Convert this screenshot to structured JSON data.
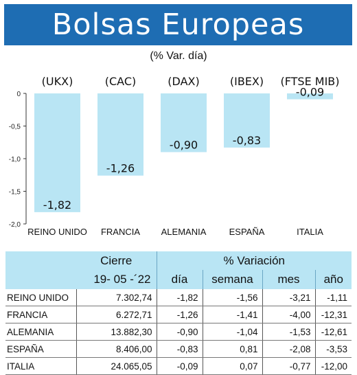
{
  "header": {
    "title": "Bolsas Europeas",
    "subtitle": "(% Var. día)"
  },
  "chart_data": {
    "type": "bar",
    "categories": [
      "REINO UNIDO",
      "FRANCIA",
      "ALEMANIA",
      "ESPAÑA",
      "ITALIA"
    ],
    "index_labels": [
      "(UKX)",
      "(CAC)",
      "(DAX)",
      "(IBEX)",
      "(FTSE MIB)"
    ],
    "values": [
      -1.82,
      -1.26,
      -0.9,
      -0.83,
      -0.09
    ],
    "value_labels": [
      "-1,82",
      "-1,26",
      "-0,90",
      "-0,83",
      "-0,09"
    ],
    "ylim": [
      -2.0,
      0
    ],
    "yticks": [
      0,
      -0.5,
      -1.0,
      -1.5,
      -2.0
    ],
    "ytick_labels": [
      "0",
      "-0,5",
      "-1,0",
      "-1,5",
      "-2,0"
    ],
    "bar_color": "#b9e5f4"
  },
  "table": {
    "header_cierre": "Cierre",
    "header_variacion": "% Variación",
    "date_label": "19- 05 -´22",
    "columns": [
      "día",
      "semana",
      "mes",
      "año"
    ],
    "rows": [
      {
        "name": "REINO UNIDO",
        "cierre": "7.302,74",
        "dia": "-1,82",
        "semana": "-1,56",
        "mes": "-3,21",
        "ano": "-1,11"
      },
      {
        "name": "FRANCIA",
        "cierre": "6.272,71",
        "dia": "-1,26",
        "semana": "-1,41",
        "mes": "-4,00",
        "ano": "-12,31"
      },
      {
        "name": "ALEMANIA",
        "cierre": "13.882,30",
        "dia": "-0,90",
        "semana": "-1,04",
        "mes": "-1,53",
        "ano": "-12,61"
      },
      {
        "name": "ESPAÑA",
        "cierre": "8.406,00",
        "dia": "-0,83",
        "semana": "0,81",
        "mes": "-2,08",
        "ano": "-3,53"
      },
      {
        "name": "ITALIA",
        "cierre": "24.065,05",
        "dia": "-0,09",
        "semana": "0,07",
        "mes": "-0,77",
        "ano": "-12,00"
      }
    ]
  },
  "colors": {
    "banner": "#1e6db3",
    "table_header": "#b9e5f4"
  }
}
